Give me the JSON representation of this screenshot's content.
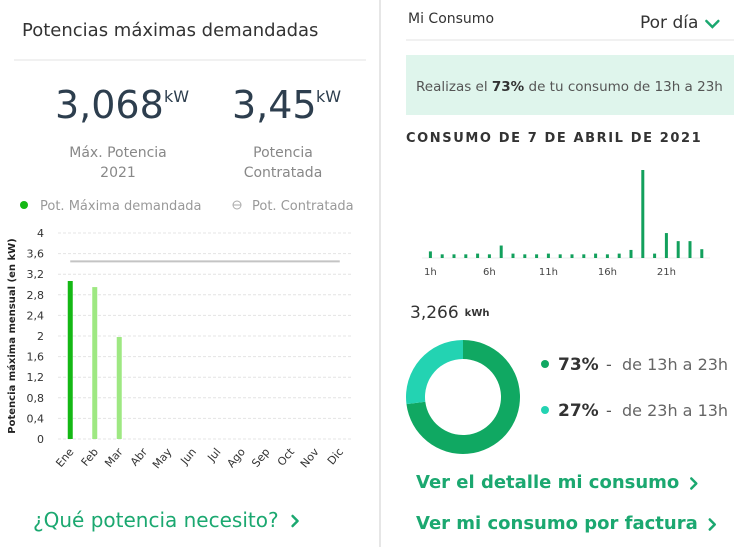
{
  "left": {
    "title": "Potencias máximas demandadas",
    "stats": [
      {
        "value": "3,068",
        "unit": "kW",
        "label": [
          "Máx. Potencia",
          "2021"
        ]
      },
      {
        "value": "3,45",
        "unit": "kW",
        "label": [
          "Potencia",
          "Contratada"
        ]
      }
    ],
    "link": "¿Qué potencia necesito?"
  },
  "right": {
    "header": "Mi Consumo",
    "period": "Por día",
    "banner": {
      "before": "Realizas el ",
      "highlight": "73%",
      "after": " de tu consumo de 13h a 23h"
    },
    "heading": "CONSUMO DE 7 DE ABRIL DE 2021",
    "total": {
      "value": "3,266",
      "unit": "kWh"
    },
    "links": [
      "Ver el detalle mi consumo",
      "Ver mi consumo por factura"
    ]
  },
  "chart_data": [
    {
      "type": "bar",
      "y_label": "Potencia máxima mensual (en kW)",
      "categories": [
        "Ene",
        "Feb",
        "Mar",
        "Abr",
        "May",
        "Jun",
        "Jul",
        "Ago",
        "Sep",
        "Oct",
        "Nov",
        "Dic"
      ],
      "series": [
        {
          "name": "Pot. Máxima demandada",
          "color": "#14b814",
          "bar_colors": [
            "#14b814",
            "#9ee882",
            "#9ee882"
          ],
          "values": [
            3.068,
            2.95,
            1.98,
            null,
            null,
            null,
            null,
            null,
            null,
            null,
            null,
            null
          ]
        },
        {
          "name": "Pot. Contratada",
          "type": "line",
          "color": "#c4c4c4",
          "values": [
            3.45,
            3.45,
            3.45,
            3.45,
            3.45,
            3.45,
            3.45,
            3.45,
            3.45,
            3.45,
            3.45,
            3.45
          ]
        }
      ],
      "ylim": [
        0,
        4
      ],
      "yticks": [
        0,
        {
          "value": 0.4,
          "label": "0,4"
        },
        {
          "value": 0.8,
          "label": "0,8"
        },
        {
          "value": 1.2,
          "label": "1,2"
        },
        {
          "value": 1.6,
          "label": "1,6"
        },
        2,
        {
          "value": 2.4,
          "label": "2,4"
        },
        {
          "value": 2.8,
          "label": "2,8"
        },
        {
          "value": 3.2,
          "label": "3,2"
        },
        {
          "value": 3.6,
          "label": "3,6"
        },
        4
      ],
      "grid": true
    },
    {
      "type": "bar",
      "categories": [
        "1h",
        null,
        null,
        null,
        null,
        "6h",
        null,
        null,
        null,
        null,
        "11h",
        null,
        null,
        null,
        null,
        "16h",
        null,
        null,
        null,
        null,
        "21h",
        null,
        null,
        null
      ],
      "values": [
        0.09,
        0.05,
        0.05,
        0.05,
        0.06,
        0.05,
        0.17,
        0.06,
        0.05,
        0.05,
        0.06,
        0.05,
        0.05,
        0.05,
        0.06,
        0.05,
        0.06,
        0.11,
        1.2,
        0.06,
        0.34,
        0.23,
        0.23,
        0.12
      ],
      "color": "#12a05c"
    },
    {
      "type": "donut",
      "categories": [
        "de 13h a 23h",
        "de 23h a 13h"
      ],
      "values": [
        73,
        27
      ],
      "value_labels": [
        "73%",
        "27%"
      ],
      "colors": [
        "#10a862",
        "#23d3b2"
      ],
      "separator": "-"
    }
  ]
}
